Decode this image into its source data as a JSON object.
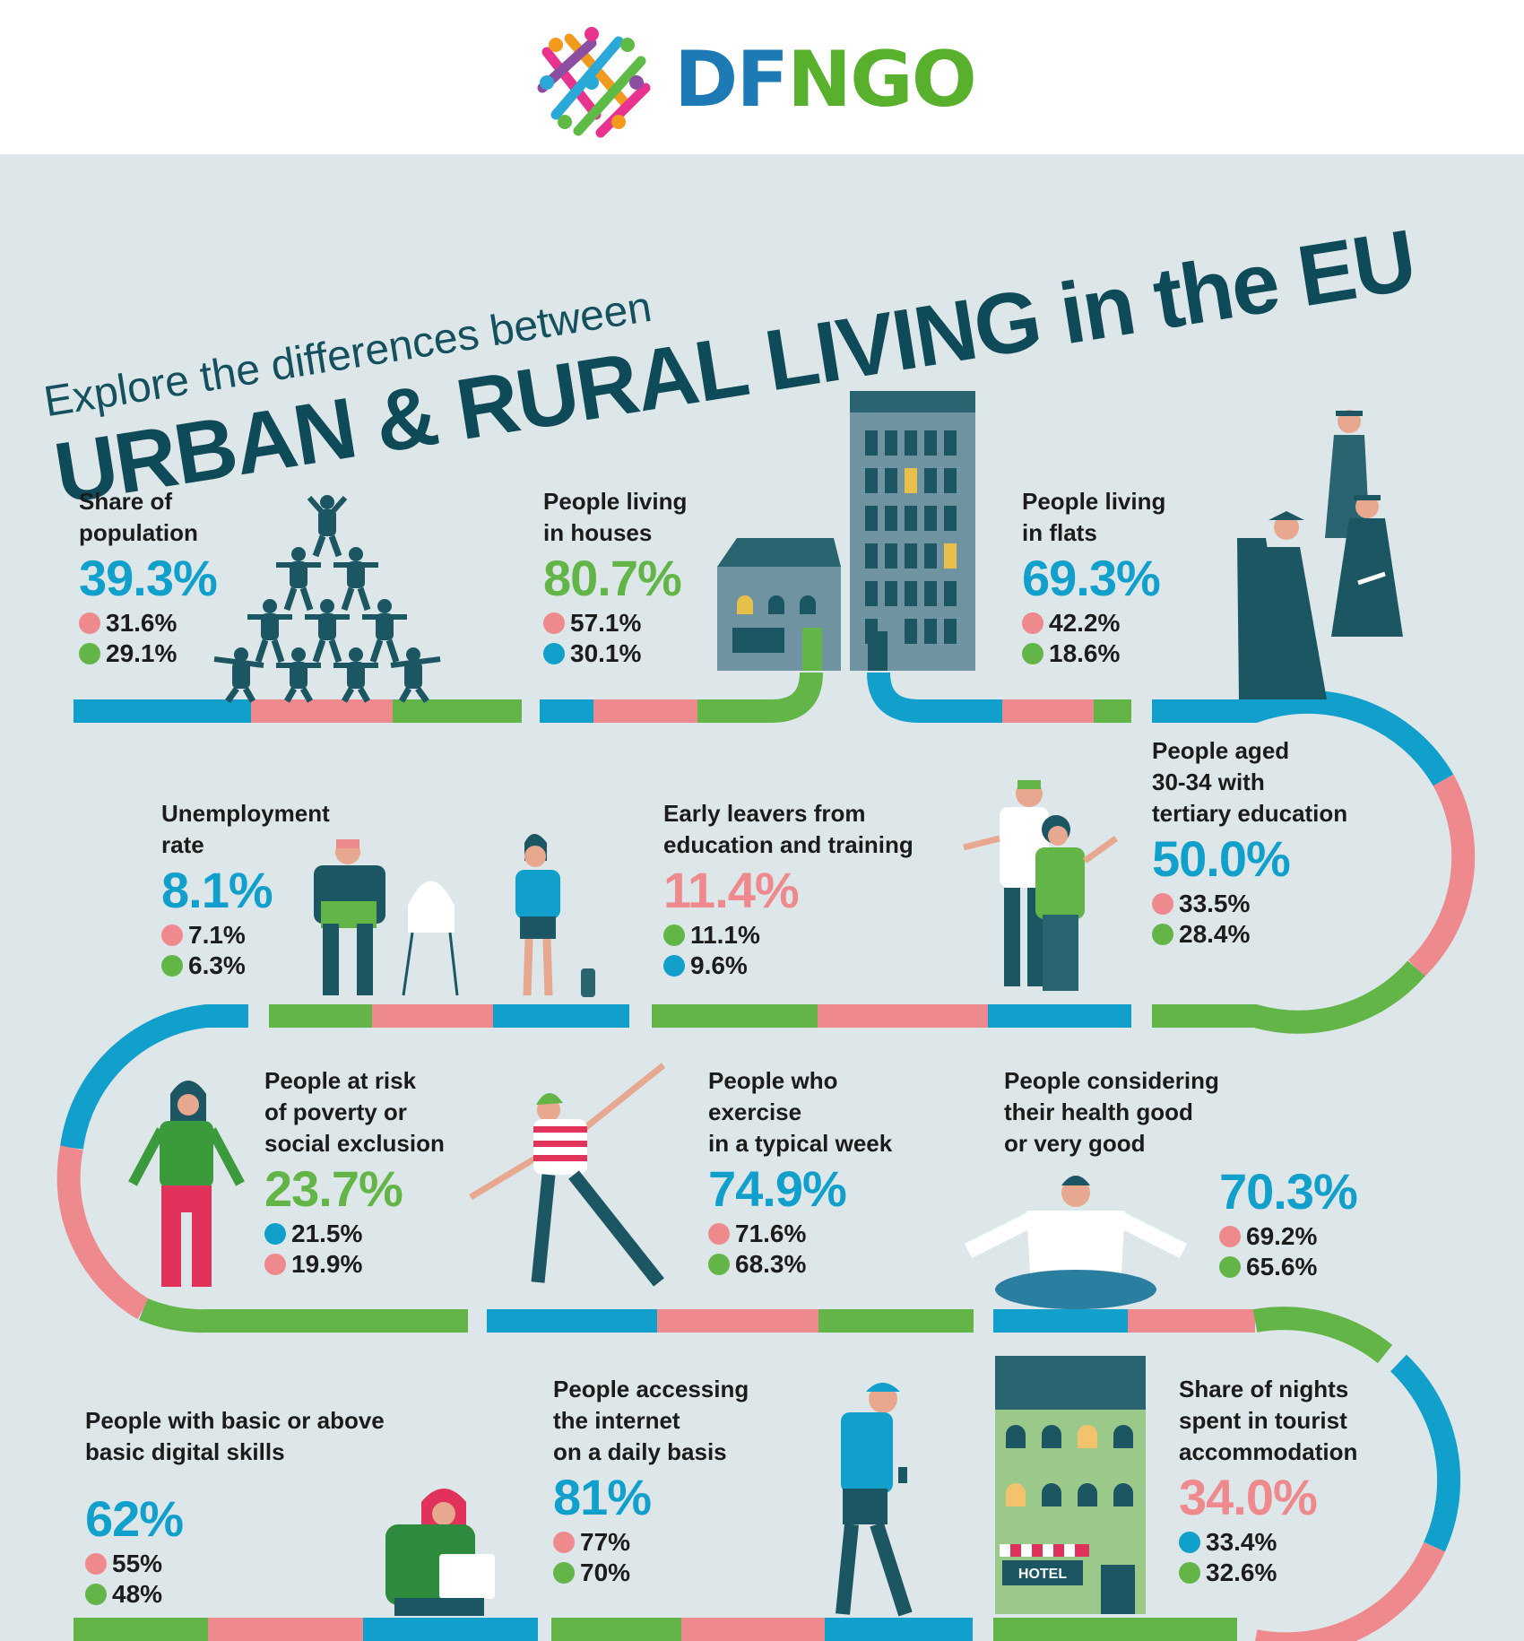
{
  "colors": {
    "cities": "#119fcc",
    "towns": "#ee8a8e",
    "rural": "#63b548",
    "navy": "#17505e",
    "bg": "#dde6e8"
  },
  "logo": {
    "name_part1": "DF",
    "name_part2": "NGO",
    "color1": "#1e7ab4",
    "color2": "#58b02d"
  },
  "title": {
    "line1": "Explore the differences between",
    "line2": "URBAN & RURAL LIVING in the EU"
  },
  "stats": [
    {
      "label": "Share of\npopulation",
      "value": "39.3%",
      "value_color": "#119fcc",
      "items": [
        {
          "color": "#ee8a8e",
          "text": "31.6%"
        },
        {
          "color": "#63b548",
          "text": "29.1%"
        }
      ]
    },
    {
      "label": "People living\nin houses",
      "value": "80.7%",
      "value_color": "#63b548",
      "items": [
        {
          "color": "#ee8a8e",
          "text": "57.1%"
        },
        {
          "color": "#119fcc",
          "text": "30.1%"
        }
      ]
    },
    {
      "label": "People living\nin flats",
      "value": "69.3%",
      "value_color": "#119fcc",
      "items": [
        {
          "color": "#ee8a8e",
          "text": "42.2%"
        },
        {
          "color": "#63b548",
          "text": "18.6%"
        }
      ]
    },
    {
      "label": "Unemployment\nrate",
      "value": "8.1%",
      "value_color": "#119fcc",
      "items": [
        {
          "color": "#ee8a8e",
          "text": "7.1%"
        },
        {
          "color": "#63b548",
          "text": "6.3%"
        }
      ]
    },
    {
      "label": "Early leavers from\neducation and training",
      "value": "11.4%",
      "value_color": "#ee8a8e",
      "items": [
        {
          "color": "#63b548",
          "text": "11.1%"
        },
        {
          "color": "#119fcc",
          "text": "9.6%"
        }
      ]
    },
    {
      "label": "People aged\n30-34 with\ntertiary education",
      "value": "50.0%",
      "value_color": "#119fcc",
      "items": [
        {
          "color": "#ee8a8e",
          "text": "33.5%"
        },
        {
          "color": "#63b548",
          "text": "28.4%"
        }
      ]
    },
    {
      "label": "People at risk\nof poverty or\nsocial exclusion",
      "value": "23.7%",
      "value_color": "#63b548",
      "items": [
        {
          "color": "#119fcc",
          "text": "21.5%"
        },
        {
          "color": "#ee8a8e",
          "text": "19.9%"
        }
      ]
    },
    {
      "label": "People who\nexercise\nin a typical week",
      "value": "74.9%",
      "value_color": "#119fcc",
      "items": [
        {
          "color": "#ee8a8e",
          "text": "71.6%"
        },
        {
          "color": "#63b548",
          "text": "68.3%"
        }
      ]
    },
    {
      "label": "People considering\ntheir health good\nor very good",
      "value": "70.3%",
      "value_color": "#119fcc",
      "items": [
        {
          "color": "#ee8a8e",
          "text": "69.2%"
        },
        {
          "color": "#63b548",
          "text": "65.6%"
        }
      ]
    },
    {
      "label": "People with basic or above\nbasic digital skills",
      "value": "62%",
      "value_color": "#119fcc",
      "items": [
        {
          "color": "#ee8a8e",
          "text": "55%"
        },
        {
          "color": "#63b548",
          "text": "48%"
        }
      ]
    },
    {
      "label": "People accessing\nthe internet\non a daily basis",
      "value": "81%",
      "value_color": "#119fcc",
      "items": [
        {
          "color": "#ee8a8e",
          "text": "77%"
        },
        {
          "color": "#63b548",
          "text": "70%"
        }
      ]
    },
    {
      "label": "Share of nights\nspent in tourist\naccommodation",
      "value": "34.0%",
      "value_color": "#ee8a8e",
      "items": [
        {
          "color": "#119fcc",
          "text": "33.4%"
        },
        {
          "color": "#63b548",
          "text": "32.6%"
        }
      ]
    }
  ],
  "hotel_sign": "HOTEL",
  "icons": [
    "logo-icon",
    "human-pyramid-icon",
    "house-icon",
    "apartment-building-icon",
    "graduates-icon",
    "job-seekers-icon",
    "couple-icon",
    "empty-pockets-person-icon",
    "exercising-woman-icon",
    "meditating-man-icon",
    "laptop-woman-icon",
    "phone-man-icon",
    "hotel-icon",
    "wifi-icon"
  ]
}
